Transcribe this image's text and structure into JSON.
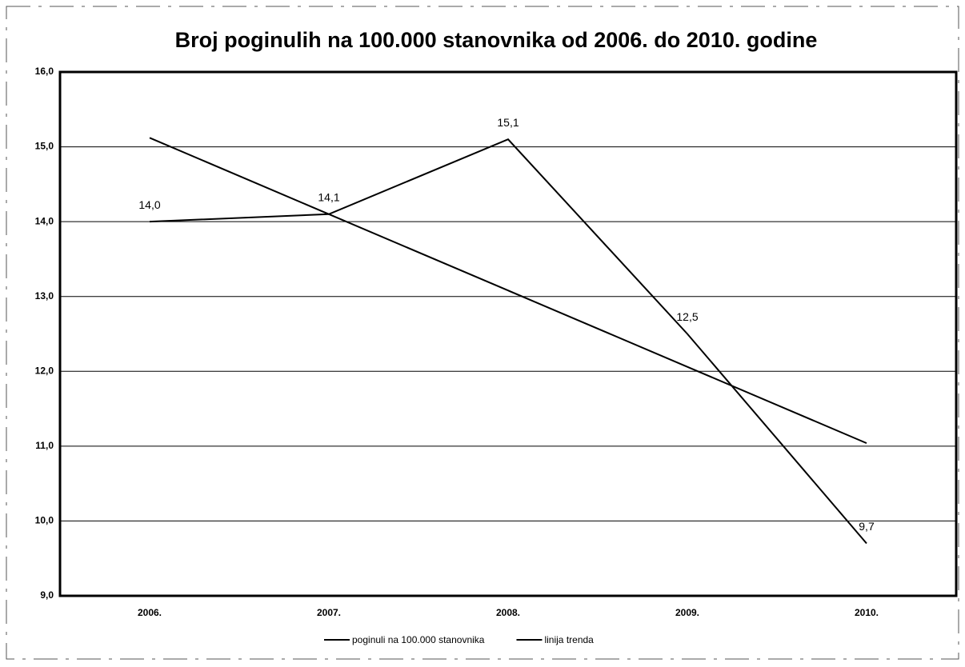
{
  "chart_data": {
    "type": "line",
    "title": "Broj poginulih na 100.000 stanovnika od 2006. do 2010. godine",
    "categories": [
      "2006.",
      "2007.",
      "2008.",
      "2009.",
      "2010."
    ],
    "series": [
      {
        "name": "poginuli na 100.000 stanovnika",
        "color": "#000000",
        "values": [
          14.0,
          14.1,
          15.1,
          12.5,
          9.7
        ],
        "value_labels": [
          "14,0",
          "14,1",
          "15,1",
          "12,5",
          "9,7"
        ]
      },
      {
        "name": "linija trenda",
        "color": "#000000",
        "values": [
          15.12,
          14.1,
          13.08,
          12.06,
          11.04
        ]
      }
    ],
    "ylim": [
      9,
      16
    ],
    "yticks": [
      {
        "value": 9,
        "label": "9,0"
      },
      {
        "value": 10,
        "label": "10,0"
      },
      {
        "value": 11,
        "label": "11,0"
      },
      {
        "value": 12,
        "label": "12,0"
      },
      {
        "value": 13,
        "label": "13,0"
      },
      {
        "value": 14,
        "label": "14,0"
      },
      {
        "value": 15,
        "label": "15,0"
      },
      {
        "value": 16,
        "label": "16,0"
      }
    ],
    "grid": true,
    "legend": "bottom"
  }
}
